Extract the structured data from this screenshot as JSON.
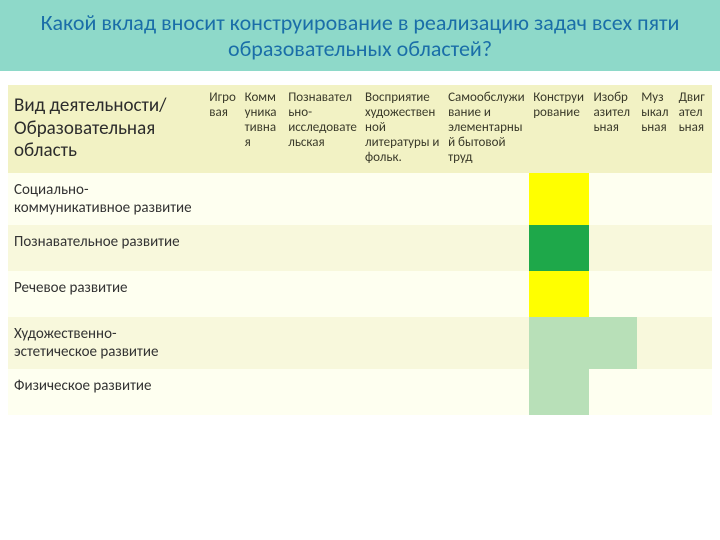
{
  "title": "Какой вклад вносит конструирование в реализацию задач всех пяти образовательных областей?",
  "colors": {
    "band": "#8ed9c9",
    "title_text": "#1a6ea8",
    "header_bg": "#f2f2c4",
    "row_base": "#fefff0",
    "row_alt": "#f8f8dc",
    "yellow": "#ffff00",
    "green": "#1ea84a",
    "lightgreen": "#b8e0b8"
  },
  "table": {
    "row_header": "Вид деятельности/ Образовательная область",
    "columns": [
      "Игровая",
      "Коммуникативная",
      "Познавательно-исследовательская",
      "Восприятие художественной литературы и фольк.",
      "Самообслуживание и элементарный бытовой труд",
      "Конструирование",
      "Изобразительная",
      "Музыкальная",
      "Двигательная"
    ],
    "rows": [
      {
        "label": "Социально-коммуникативное развитие",
        "cells": [
          "",
          "",
          "",
          "",
          "",
          "yellow",
          "",
          "",
          ""
        ]
      },
      {
        "label": "Познавательное развитие",
        "cells": [
          "",
          "",
          "",
          "",
          "",
          "green",
          "",
          "",
          ""
        ]
      },
      {
        "label": "Речевое развитие",
        "cells": [
          "",
          "",
          "",
          "",
          "",
          "yellow",
          "",
          "",
          ""
        ]
      },
      {
        "label": "Художественно-эстетическое развитие",
        "cells": [
          "",
          "",
          "",
          "",
          "",
          "lightgreen",
          "lightgreen",
          "",
          ""
        ]
      },
      {
        "label": "Физическое развитие",
        "cells": [
          "",
          "",
          "",
          "",
          "",
          "lightgreen",
          "",
          "",
          ""
        ]
      }
    ]
  }
}
